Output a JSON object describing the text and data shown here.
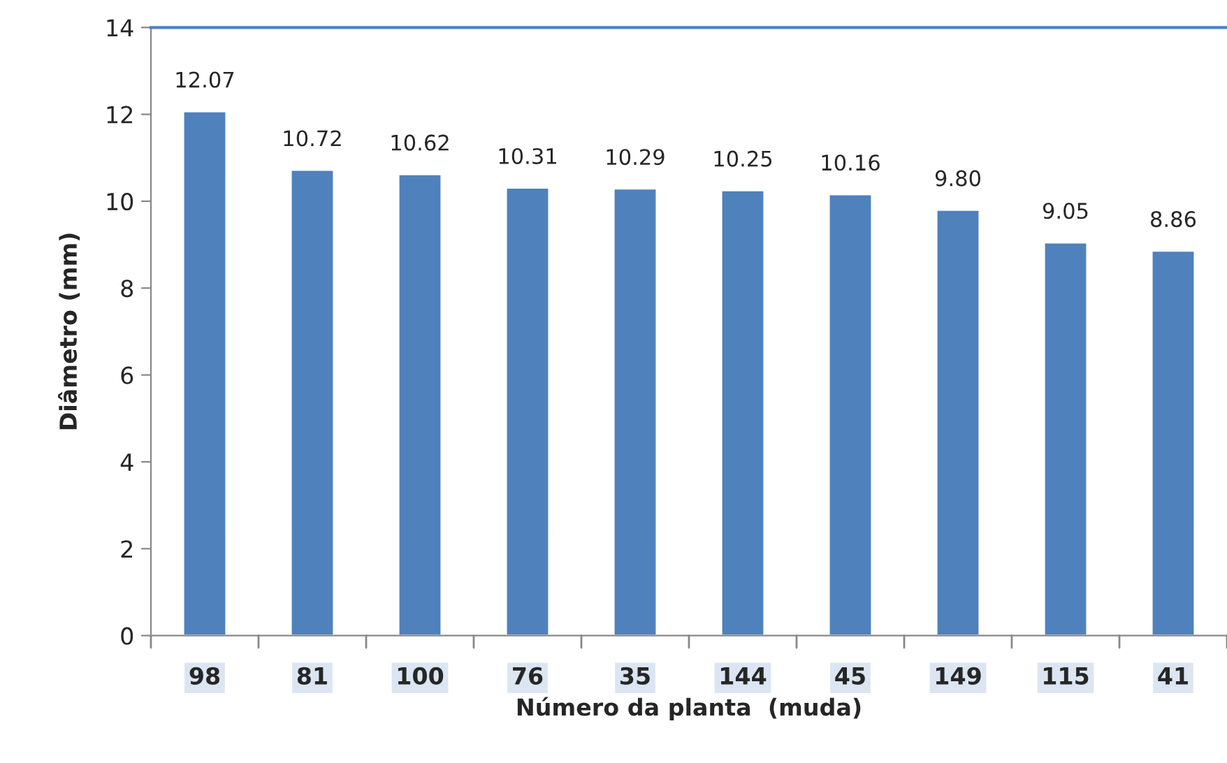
{
  "chart_data": {
    "type": "bar",
    "xlabel": "Número da planta  (muda)",
    "ylabel": "Diâmetro (mm)",
    "categories": [
      "98",
      "81",
      "100",
      "76",
      "35",
      "144",
      "45",
      "149",
      "115",
      "41"
    ],
    "values": [
      12.07,
      10.72,
      10.62,
      10.31,
      10.29,
      10.25,
      10.16,
      9.8,
      9.05,
      8.86
    ],
    "value_labels": [
      "12.07",
      "10.72",
      "10.62",
      "10.31",
      "10.29",
      "10.25",
      "10.16",
      "9.80",
      "9.05",
      "8.86"
    ],
    "color": "#4f81bd",
    "ylim": [
      0,
      14
    ],
    "yticks": [
      0,
      2,
      4,
      6,
      8,
      10,
      12,
      14
    ],
    "grid": false,
    "legend": false
  }
}
